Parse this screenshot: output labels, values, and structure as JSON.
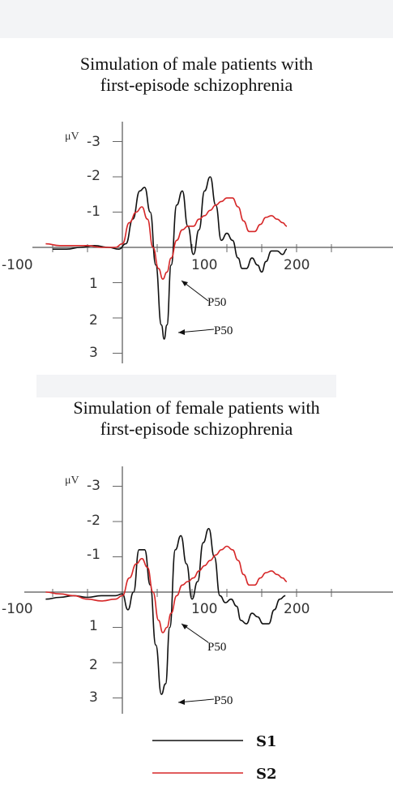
{
  "panels": [
    {
      "title_lines": [
        "Simulation of male patients with",
        "first-episode schizophrenia"
      ],
      "unit": "μV",
      "x_ticks": [
        "-100",
        "100",
        "200"
      ],
      "y_ticks": [
        "-3",
        "-2",
        "-1",
        "1",
        "2",
        "3"
      ],
      "annotations": [
        "P50",
        "P50"
      ]
    },
    {
      "title_lines": [
        "Simulation of female patients with",
        "first-episode schizophrenia"
      ],
      "unit": "μV",
      "x_ticks": [
        "-100",
        "100",
        "200"
      ],
      "y_ticks": [
        "-3",
        "-2",
        "-1",
        "1",
        "2",
        "3"
      ],
      "annotations": [
        "P50",
        "P50"
      ]
    }
  ],
  "legend": [
    {
      "label": "S1",
      "color": "#111111"
    },
    {
      "label": "S2",
      "color": "#d62728"
    }
  ],
  "chart_data": [
    {
      "type": "line",
      "title": "Simulation of male patients with first-episode schizophrenia",
      "xlabel": "",
      "ylabel": "μV",
      "xlim": [
        -110,
        240
      ],
      "ylim": [
        3.2,
        -3.5
      ],
      "y_axis_inverted": true,
      "grid": false,
      "series": [
        {
          "name": "S1",
          "color": "#111111",
          "x": [
            -100,
            -80,
            -60,
            -40,
            -20,
            -5,
            5,
            15,
            25,
            32,
            40,
            48,
            56,
            60,
            64,
            70,
            78,
            86,
            94,
            102,
            110,
            118,
            126,
            134,
            142,
            150,
            158,
            166,
            172,
            178,
            186,
            194,
            200,
            206,
            214,
            222,
            230,
            236
          ],
          "y": [
            0.05,
            0.05,
            0.0,
            -0.05,
            0.0,
            0.05,
            -0.1,
            -0.8,
            -1.6,
            -1.7,
            -1.0,
            0.5,
            2.2,
            2.6,
            2.2,
            0.5,
            -1.2,
            -1.6,
            -0.6,
            0.2,
            -0.5,
            -1.6,
            -2.0,
            -1.2,
            -0.2,
            -0.4,
            -0.2,
            0.3,
            0.6,
            0.6,
            0.3,
            0.5,
            0.7,
            0.4,
            0.1,
            0.1,
            0.2,
            0.05
          ]
        },
        {
          "name": "S2",
          "color": "#d62728",
          "x": [
            -110,
            -90,
            -70,
            -50,
            -30,
            -10,
            0,
            10,
            20,
            28,
            36,
            44,
            52,
            58,
            64,
            70,
            78,
            86,
            94,
            102,
            110,
            118,
            126,
            134,
            142,
            150,
            158,
            166,
            174,
            182,
            190,
            198,
            206,
            214,
            222,
            230,
            236
          ],
          "y": [
            -0.1,
            -0.05,
            -0.05,
            -0.05,
            0.0,
            0.0,
            -0.1,
            -0.7,
            -1.0,
            -1.15,
            -0.8,
            0.0,
            0.6,
            0.9,
            0.7,
            0.3,
            -0.2,
            -0.5,
            -0.6,
            -0.6,
            -0.8,
            -0.9,
            -1.05,
            -1.2,
            -1.3,
            -1.4,
            -1.4,
            -1.15,
            -0.75,
            -0.45,
            -0.45,
            -0.65,
            -0.85,
            -0.9,
            -0.8,
            -0.7,
            -0.6
          ]
        }
      ]
    },
    {
      "type": "line",
      "title": "Simulation of female patients with first-episode schizophrenia",
      "xlabel": "",
      "ylabel": "μV",
      "xlim": [
        -110,
        240
      ],
      "ylim": [
        3.2,
        -3.5
      ],
      "y_axis_inverted": true,
      "grid": false,
      "series": [
        {
          "name": "S1",
          "color": "#111111",
          "x": [
            -110,
            -90,
            -70,
            -50,
            -30,
            -10,
            0,
            8,
            16,
            24,
            32,
            40,
            48,
            56,
            62,
            68,
            76,
            84,
            92,
            100,
            108,
            116,
            124,
            132,
            140,
            148,
            156,
            164,
            170,
            178,
            186,
            194,
            202,
            210,
            218,
            226,
            234
          ],
          "y": [
            0.2,
            0.15,
            0.1,
            0.15,
            0.1,
            0.1,
            0.05,
            0.5,
            0.0,
            -1.2,
            -1.2,
            -0.2,
            1.5,
            2.9,
            2.6,
            1.0,
            -1.2,
            -1.6,
            -0.8,
            0.2,
            -0.3,
            -1.4,
            -1.8,
            -1.0,
            0.1,
            0.3,
            0.2,
            0.4,
            0.8,
            0.9,
            0.6,
            0.7,
            0.9,
            0.9,
            0.5,
            0.2,
            0.1
          ]
        },
        {
          "name": "S2",
          "color": "#d62728",
          "x": [
            -110,
            -90,
            -70,
            -50,
            -30,
            -10,
            0,
            10,
            20,
            28,
            36,
            44,
            52,
            58,
            64,
            70,
            78,
            86,
            94,
            102,
            110,
            118,
            126,
            134,
            142,
            150,
            158,
            166,
            174,
            182,
            190,
            198,
            206,
            214,
            222,
            230,
            236
          ],
          "y": [
            0.0,
            0.05,
            0.1,
            0.2,
            0.25,
            0.2,
            0.1,
            -0.4,
            -0.8,
            -0.95,
            -0.7,
            0.0,
            0.8,
            1.15,
            1.0,
            0.6,
            0.1,
            -0.2,
            -0.3,
            -0.4,
            -0.6,
            -0.75,
            -0.9,
            -1.05,
            -1.2,
            -1.3,
            -1.2,
            -0.9,
            -0.5,
            -0.2,
            -0.2,
            -0.4,
            -0.55,
            -0.6,
            -0.5,
            -0.4,
            -0.3
          ]
        }
      ]
    }
  ]
}
